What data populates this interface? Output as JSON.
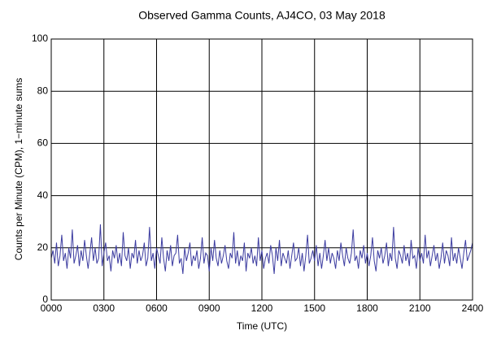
{
  "chart_data": {
    "type": "line",
    "title": "Observed Gamma Counts, AJ4CO, 03 May 2018",
    "xlabel": "Time (UTC)",
    "ylabel": "Counts per Minute (CPM), 1−minute sums",
    "color": "#3c3ca0",
    "grid": true,
    "xlim": [
      0,
      24
    ],
    "ylim": [
      0,
      100
    ],
    "yticks": [
      0,
      20,
      40,
      60,
      80,
      100
    ],
    "xticks": [
      {
        "value": 0,
        "label": "0000"
      },
      {
        "value": 3,
        "label": "0300"
      },
      {
        "value": 6,
        "label": "0600"
      },
      {
        "value": 9,
        "label": "0900"
      },
      {
        "value": 12,
        "label": "1200"
      },
      {
        "value": 15,
        "label": "1500"
      },
      {
        "value": 18,
        "label": "1800"
      },
      {
        "value": 21,
        "label": "2100"
      },
      {
        "value": 24,
        "label": "2400"
      }
    ],
    "x": [
      0,
      0.1,
      0.2,
      0.3,
      0.4,
      0.5,
      0.6,
      0.7,
      0.8,
      0.9,
      1,
      1.1,
      1.2,
      1.3,
      1.4,
      1.5,
      1.6,
      1.7,
      1.8,
      1.9,
      2,
      2.1,
      2.2,
      2.3,
      2.4,
      2.5,
      2.6,
      2.7,
      2.8,
      2.9,
      3,
      3.1,
      3.2,
      3.3,
      3.4,
      3.5,
      3.6,
      3.7,
      3.8,
      3.9,
      4,
      4.1,
      4.2,
      4.3,
      4.4,
      4.5,
      4.6,
      4.7,
      4.8,
      4.9,
      5,
      5.1,
      5.2,
      5.3,
      5.4,
      5.5,
      5.6,
      5.7,
      5.8,
      5.9,
      6,
      6.1,
      6.2,
      6.3,
      6.4,
      6.5,
      6.6,
      6.7,
      6.8,
      6.9,
      7,
      7.1,
      7.2,
      7.3,
      7.4,
      7.5,
      7.6,
      7.7,
      7.8,
      7.9,
      8,
      8.1,
      8.2,
      8.3,
      8.4,
      8.5,
      8.6,
      8.7,
      8.8,
      8.9,
      9,
      9.1,
      9.2,
      9.3,
      9.4,
      9.5,
      9.6,
      9.7,
      9.8,
      9.9,
      10,
      10.1,
      10.2,
      10.3,
      10.4,
      10.5,
      10.6,
      10.7,
      10.8,
      10.9,
      11,
      11.1,
      11.2,
      11.3,
      11.4,
      11.5,
      11.6,
      11.7,
      11.8,
      11.9,
      12,
      12.1,
      12.2,
      12.3,
      12.4,
      12.5,
      12.6,
      12.7,
      12.8,
      12.9,
      13,
      13.1,
      13.2,
      13.3,
      13.4,
      13.5,
      13.6,
      13.7,
      13.8,
      13.9,
      14,
      14.1,
      14.2,
      14.3,
      14.4,
      14.5,
      14.6,
      14.7,
      14.8,
      14.9,
      15,
      15.1,
      15.2,
      15.3,
      15.4,
      15.5,
      15.6,
      15.7,
      15.8,
      15.9,
      16,
      16.1,
      16.2,
      16.3,
      16.4,
      16.5,
      16.6,
      16.7,
      16.8,
      16.9,
      17,
      17.1,
      17.2,
      17.3,
      17.4,
      17.5,
      17.6,
      17.7,
      17.8,
      17.9,
      18,
      18.1,
      18.2,
      18.3,
      18.4,
      18.5,
      18.6,
      18.7,
      18.8,
      18.9,
      19,
      19.1,
      19.2,
      19.3,
      19.4,
      19.5,
      19.6,
      19.7,
      19.8,
      19.9,
      20,
      20.1,
      20.2,
      20.3,
      20.4,
      20.5,
      20.6,
      20.7,
      20.8,
      20.9,
      21,
      21.1,
      21.2,
      21.3,
      21.4,
      21.5,
      21.6,
      21.7,
      21.8,
      21.9,
      22,
      22.1,
      22.2,
      22.3,
      22.4,
      22.5,
      22.6,
      22.7,
      22.8,
      22.9,
      23,
      23.1,
      23.2,
      23.3,
      23.4,
      23.5,
      23.6,
      23.7,
      23.8,
      23.9,
      24
    ],
    "values": [
      16,
      19,
      14,
      22,
      13,
      17,
      25,
      15,
      18,
      12,
      20,
      16,
      27,
      14,
      17,
      21,
      13,
      19,
      15,
      23,
      17,
      12,
      18,
      24,
      15,
      20,
      14,
      16,
      29,
      13,
      18,
      22,
      15,
      17,
      11,
      19,
      16,
      21,
      14,
      18,
      13,
      26,
      17,
      15,
      20,
      12,
      18,
      16,
      23,
      14,
      19,
      15,
      17,
      22,
      13,
      16,
      28,
      15,
      18,
      12,
      20,
      17,
      14,
      24,
      16,
      11,
      19,
      15,
      21,
      13,
      17,
      18,
      25,
      14,
      16,
      10,
      20,
      15,
      18,
      22,
      13,
      17,
      15,
      19,
      12,
      16,
      24,
      14,
      18,
      17,
      11,
      20,
      15,
      23,
      16,
      13,
      19,
      14,
      17,
      21,
      15,
      12,
      18,
      16,
      26,
      14,
      19,
      13,
      17,
      15,
      22,
      11,
      18,
      16,
      20,
      14,
      17,
      13,
      24,
      15,
      19,
      12,
      16,
      18,
      14,
      21,
      17,
      10,
      20,
      15,
      23,
      13,
      18,
      16,
      14,
      19,
      12,
      17,
      22,
      15,
      16,
      20,
      13,
      18,
      11,
      17,
      25,
      14,
      16,
      19,
      15,
      21,
      13,
      18,
      12,
      17,
      23,
      15,
      20,
      14,
      18,
      16,
      12,
      19,
      15,
      22,
      17,
      13,
      20,
      16,
      14,
      18,
      27,
      15,
      17,
      12,
      19,
      16,
      21,
      14,
      18,
      13,
      17,
      24,
      15,
      11,
      19,
      16,
      20,
      14,
      17,
      22,
      13,
      18,
      15,
      28,
      16,
      12,
      19,
      17,
      14,
      21,
      15,
      18,
      13,
      23,
      16,
      17,
      12,
      20,
      15,
      18,
      14,
      25,
      16,
      19,
      13,
      17,
      21,
      15,
      18,
      12,
      16,
      22,
      14,
      19,
      17,
      13,
      24,
      15,
      18,
      14,
      20,
      16,
      12,
      18,
      23,
      15,
      17,
      19,
      22
    ]
  }
}
